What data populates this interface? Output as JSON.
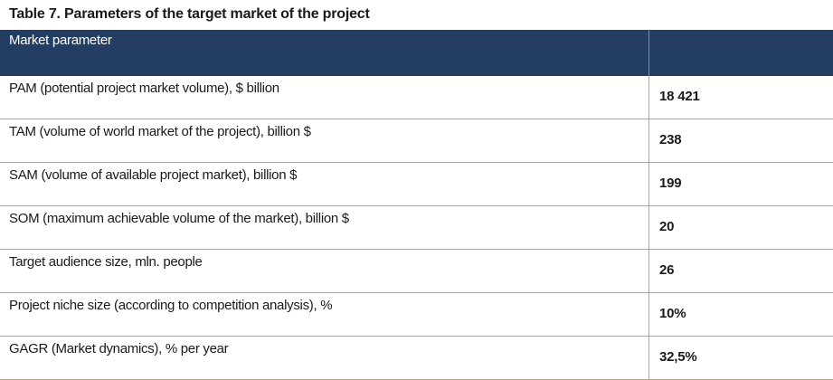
{
  "caption": "Table 7. Parameters of the target market of the project",
  "table": {
    "header": {
      "parameter": "Market parameter",
      "value": ""
    },
    "rows": [
      {
        "parameter": "PAM (potential project market volume), $ billion",
        "value": "18 421"
      },
      {
        "parameter": "TAM (volume of world market of the project), billion $",
        "value": "238"
      },
      {
        "parameter": "SAM (volume of available project market), billion $",
        "value": "199"
      },
      {
        "parameter": "SOM (maximum achievable volume of the market), billion $",
        "value": "20"
      },
      {
        "parameter": "Target audience size, mln. people",
        "value": "26"
      },
      {
        "parameter": "Project niche size (according to competition analysis), %",
        "value": "10%"
      },
      {
        "parameter": "GAGR (Market dynamics), % per year",
        "value": "32,5%"
      }
    ]
  },
  "colors": {
    "header_background": "#233d63",
    "header_text": "#ffffff",
    "row_border": "#c9ac4a",
    "text": "#1a1a1a"
  }
}
